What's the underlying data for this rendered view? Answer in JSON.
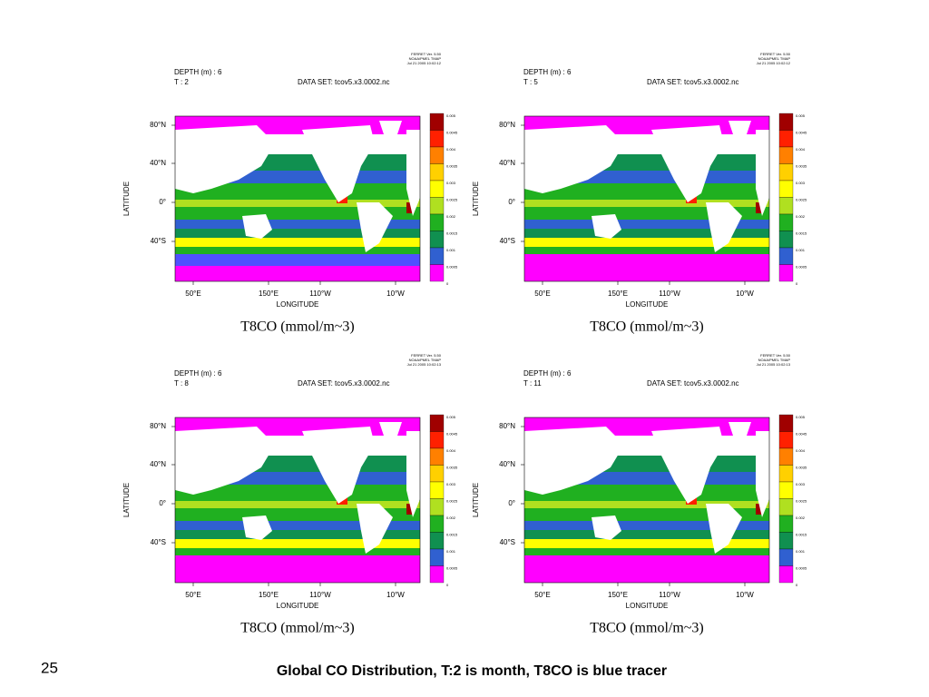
{
  "slide_number": "25",
  "caption": "Global CO Distribution, T:2 is  month, T8CO is blue tracer",
  "panels": [
    {
      "ferret": [
        "FERRET Ver. 5.50",
        "NOAA/PMEL TMAP",
        "Jul 21 2005 10:02:12"
      ],
      "depth": "DEPTH (m) : 6",
      "time": "T : 2",
      "dataset": "DATA SET: tcov5.x3.0002.nc",
      "lat_labels": [
        "80°N",
        "40°N",
        "0°",
        "40°S"
      ],
      "lon_labels": [
        "50°E",
        "150°E",
        "110°W",
        "10°W"
      ],
      "y_label": "LATITUDE",
      "x_label": "LONGITUDE",
      "colorbar_labels": [
        "0.005",
        "0.0045",
        "0.004",
        "0.0035",
        "0.003",
        "0.0025",
        "0.002",
        "0.0015",
        "0.001",
        "0.0005",
        "0"
      ],
      "variable": "T8CO (mmol/m~3)"
    },
    {
      "ferret": [
        "FERRET Ver. 5.50",
        "NOAA/PMEL TMAP",
        "Jul 21 2005 10:02:12"
      ],
      "depth": "DEPTH (m) : 6",
      "time": "T : 5",
      "dataset": "DATA SET: tcov5.x3.0002.nc",
      "lat_labels": [
        "80°N",
        "40°N",
        "0°",
        "40°S"
      ],
      "lon_labels": [
        "50°E",
        "150°E",
        "110°W",
        "10°W"
      ],
      "y_label": "LATITUDE",
      "x_label": "LONGITUDE",
      "colorbar_labels": [
        "0.005",
        "0.0045",
        "0.004",
        "0.0035",
        "0.003",
        "0.0025",
        "0.002",
        "0.0015",
        "0.001",
        "0.0005",
        "0"
      ],
      "variable": "T8CO (mmol/m~3)"
    },
    {
      "ferret": [
        "FERRET Ver. 5.50",
        "NOAA/PMEL TMAP",
        "Jul 21 2005 10:02:13"
      ],
      "depth": "DEPTH (m) : 6",
      "time": "T : 8",
      "dataset": "DATA SET: tcov5.x3.0002.nc",
      "lat_labels": [
        "80°N",
        "40°N",
        "0°",
        "40°S"
      ],
      "lon_labels": [
        "50°E",
        "150°E",
        "110°W",
        "10°W"
      ],
      "y_label": "LATITUDE",
      "x_label": "LONGITUDE",
      "colorbar_labels": [
        "0.005",
        "0.0045",
        "0.004",
        "0.0035",
        "0.003",
        "0.0025",
        "0.002",
        "0.0015",
        "0.001",
        "0.0005",
        "0"
      ],
      "variable": "T8CO (mmol/m~3)"
    },
    {
      "ferret": [
        "FERRET Ver. 5.50",
        "NOAA/PMEL TMAP",
        "Jul 21 2005 10:02:13"
      ],
      "depth": "DEPTH (m) : 6",
      "time": "T : 11",
      "dataset": "DATA SET: tcov5.x3.0002.nc",
      "lat_labels": [
        "80°N",
        "40°N",
        "0°",
        "40°S"
      ],
      "lon_labels": [
        "50°E",
        "150°E",
        "110°W",
        "10°W"
      ],
      "y_label": "LATITUDE",
      "x_label": "LONGITUDE",
      "colorbar_labels": [
        "0.005",
        "0.0045",
        "0.004",
        "0.0035",
        "0.003",
        "0.0025",
        "0.002",
        "0.0015",
        "0.001",
        "0.0005",
        "0"
      ],
      "variable": "T8CO (mmol/m~3)"
    }
  ]
}
